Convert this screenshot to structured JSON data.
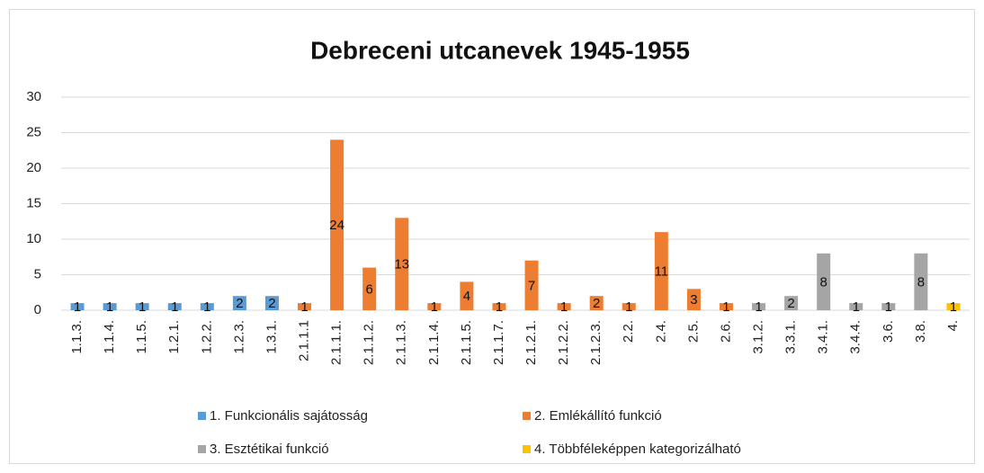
{
  "chart_data": {
    "type": "bar",
    "title": "Debreceni utcanevek 1945-1955",
    "categories": [
      "1.1.3.",
      "1.1.4.",
      "1.1.5.",
      "1.2.1.",
      "1.2.2.",
      "1.2.3.",
      "1.3.1.",
      "2.1.1.1",
      "2.1.1.1.",
      "2.1.1.2.",
      "2.1.1.3.",
      "2.1.1.4.",
      "2.1.1.5.",
      "2.1.1.7.",
      "2.1.2.1.",
      "2.1.2.2.",
      "2.1.2.3.",
      "2.2.",
      "2.4.",
      "2.5.",
      "2.6.",
      "3.1.2.",
      "3.3.1.",
      "3.4.1.",
      "3.4.4.",
      "3.6.",
      "3.8.",
      "4."
    ],
    "series": [
      {
        "name": "1. Funkcionális sajátosság",
        "color": "#5b9bd5",
        "values": [
          1,
          1,
          1,
          1,
          1,
          2,
          2,
          null,
          null,
          null,
          null,
          null,
          null,
          null,
          null,
          null,
          null,
          null,
          null,
          null,
          null,
          null,
          null,
          null,
          null,
          null,
          null,
          null
        ]
      },
      {
        "name": "2.  Emlékállító funkció",
        "color": "#ed7d31",
        "values": [
          null,
          null,
          null,
          null,
          null,
          null,
          null,
          1,
          24,
          6,
          13,
          1,
          4,
          1,
          7,
          1,
          2,
          1,
          11,
          3,
          1,
          null,
          null,
          null,
          null,
          null,
          null,
          null
        ]
      },
      {
        "name": "3. Esztétikai funkció",
        "color": "#a5a5a5",
        "values": [
          null,
          null,
          null,
          null,
          null,
          null,
          null,
          null,
          null,
          null,
          null,
          null,
          null,
          null,
          null,
          null,
          null,
          null,
          null,
          null,
          null,
          1,
          2,
          8,
          1,
          1,
          8,
          null
        ]
      },
      {
        "name": "4. Többféleképpen kategorizálható",
        "color": "#ffc000",
        "values": [
          null,
          null,
          null,
          null,
          null,
          null,
          null,
          null,
          null,
          null,
          null,
          null,
          null,
          null,
          null,
          null,
          null,
          null,
          null,
          null,
          null,
          null,
          null,
          null,
          null,
          null,
          null,
          1
        ]
      }
    ],
    "ylim": [
      0,
      30
    ],
    "yticks": [
      0,
      5,
      10,
      15,
      20,
      25,
      30
    ],
    "grid": true,
    "legend": "bottom"
  }
}
